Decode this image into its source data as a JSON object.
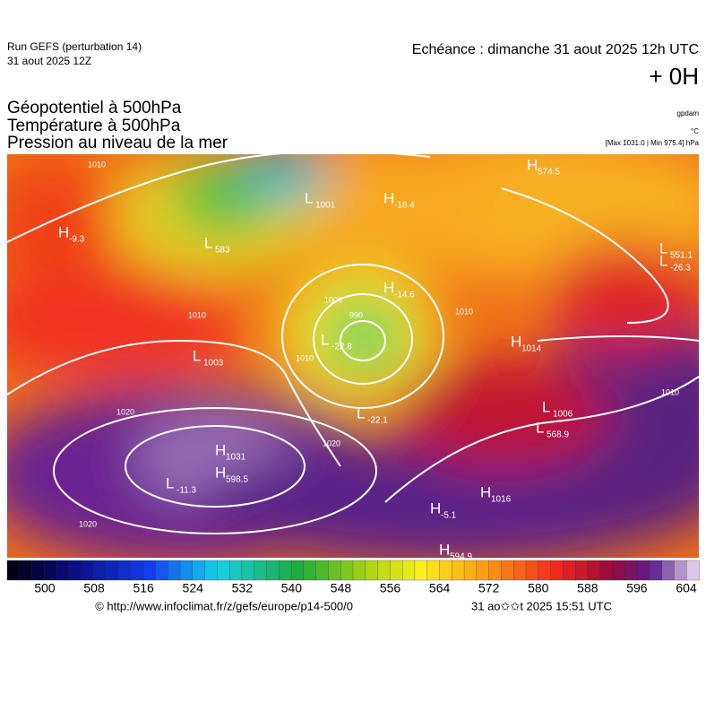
{
  "header": {
    "run": "Run GEFS (perturbation 14)",
    "date": "31 aout 2025 12Z",
    "echeance": "Echéance : dimanche 31 aout 2025 12h UTC",
    "offset": "+ 0H"
  },
  "fields": [
    "Géopotentiel à 500hPa",
    "Température à 500hPa",
    "Pression au niveau de la mer"
  ],
  "units": [
    "gpdam",
    "°C",
    "[Max 1031.0 | Min 975.4] hPa"
  ],
  "map_labels": [
    {
      "letter": "H",
      "value": "1031"
    },
    {
      "letter": "H",
      "value": "598.5"
    },
    {
      "letter": "L",
      "value": "-11.3"
    },
    {
      "letter": "L",
      "value": "1003"
    },
    {
      "letter": "L",
      "value": "1001"
    },
    {
      "letter": "H",
      "value": "-18.4"
    },
    {
      "letter": "H",
      "value": "574.5"
    },
    {
      "letter": "H",
      "value": "-9.3"
    },
    {
      "letter": "H",
      "value": "1014"
    },
    {
      "letter": "H",
      "value": "1016"
    },
    {
      "letter": "H",
      "value": "-5.1"
    },
    {
      "letter": "L",
      "value": "-22.1"
    },
    {
      "letter": "L",
      "value": "-26.3"
    },
    {
      "letter": "L",
      "value": "551.1"
    },
    {
      "letter": "L",
      "value": "-22.8"
    },
    {
      "letter": "L",
      "value": "568.9"
    },
    {
      "letter": "L",
      "value": "1006"
    },
    {
      "letter": "H",
      "value": "-14.6"
    },
    {
      "letter": "L",
      "value": "583"
    },
    {
      "letter": "H",
      "value": "594.9"
    }
  ],
  "isobar_labels": [
    "1010",
    "1020",
    "1020",
    "1010",
    "990",
    "1000",
    "1010",
    "1020",
    "1010",
    "1010"
  ],
  "colorbar": {
    "ticks": [
      500,
      508,
      516,
      524,
      532,
      540,
      548,
      556,
      564,
      572,
      580,
      588,
      596,
      604
    ]
  },
  "footer": {
    "url": "© http://www.infoclimat.fr/z/gefs/europe/p14-500/0",
    "timestamp": "31 ao✩✩t 2025 15:51 UTC"
  }
}
